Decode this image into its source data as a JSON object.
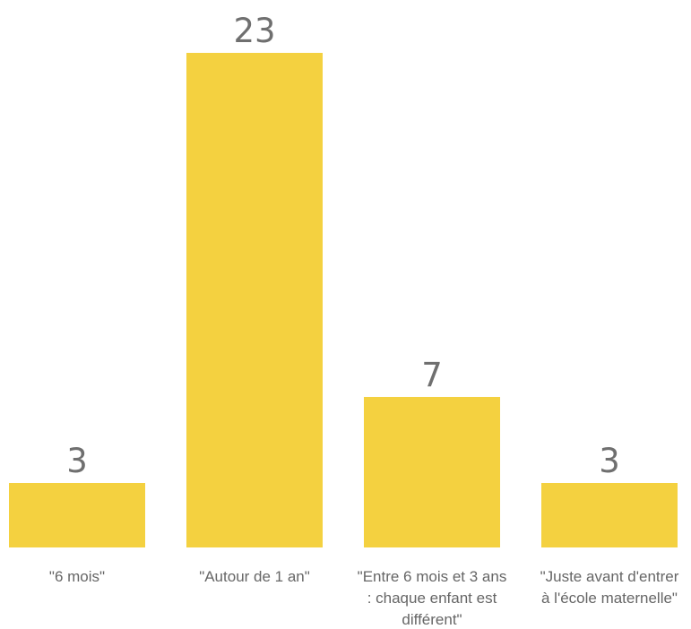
{
  "chart_data": {
    "type": "bar",
    "categories": [
      [
        "\"6 mois\""
      ],
      [
        "\"Autour de 1 an\""
      ],
      [
        "\"Entre 6 mois et 3 ans",
        ": chaque enfant est",
        "différent\""
      ],
      [
        "\"Juste avant d'entrer",
        "à l'école maternelle\""
      ]
    ],
    "values": [
      3,
      23,
      7,
      3
    ],
    "data_labels": [
      "3",
      "23",
      "7",
      "3"
    ],
    "bar_color": "#f4d140",
    "ylim": [
      0,
      23
    ],
    "grid": false,
    "legend": "none"
  }
}
